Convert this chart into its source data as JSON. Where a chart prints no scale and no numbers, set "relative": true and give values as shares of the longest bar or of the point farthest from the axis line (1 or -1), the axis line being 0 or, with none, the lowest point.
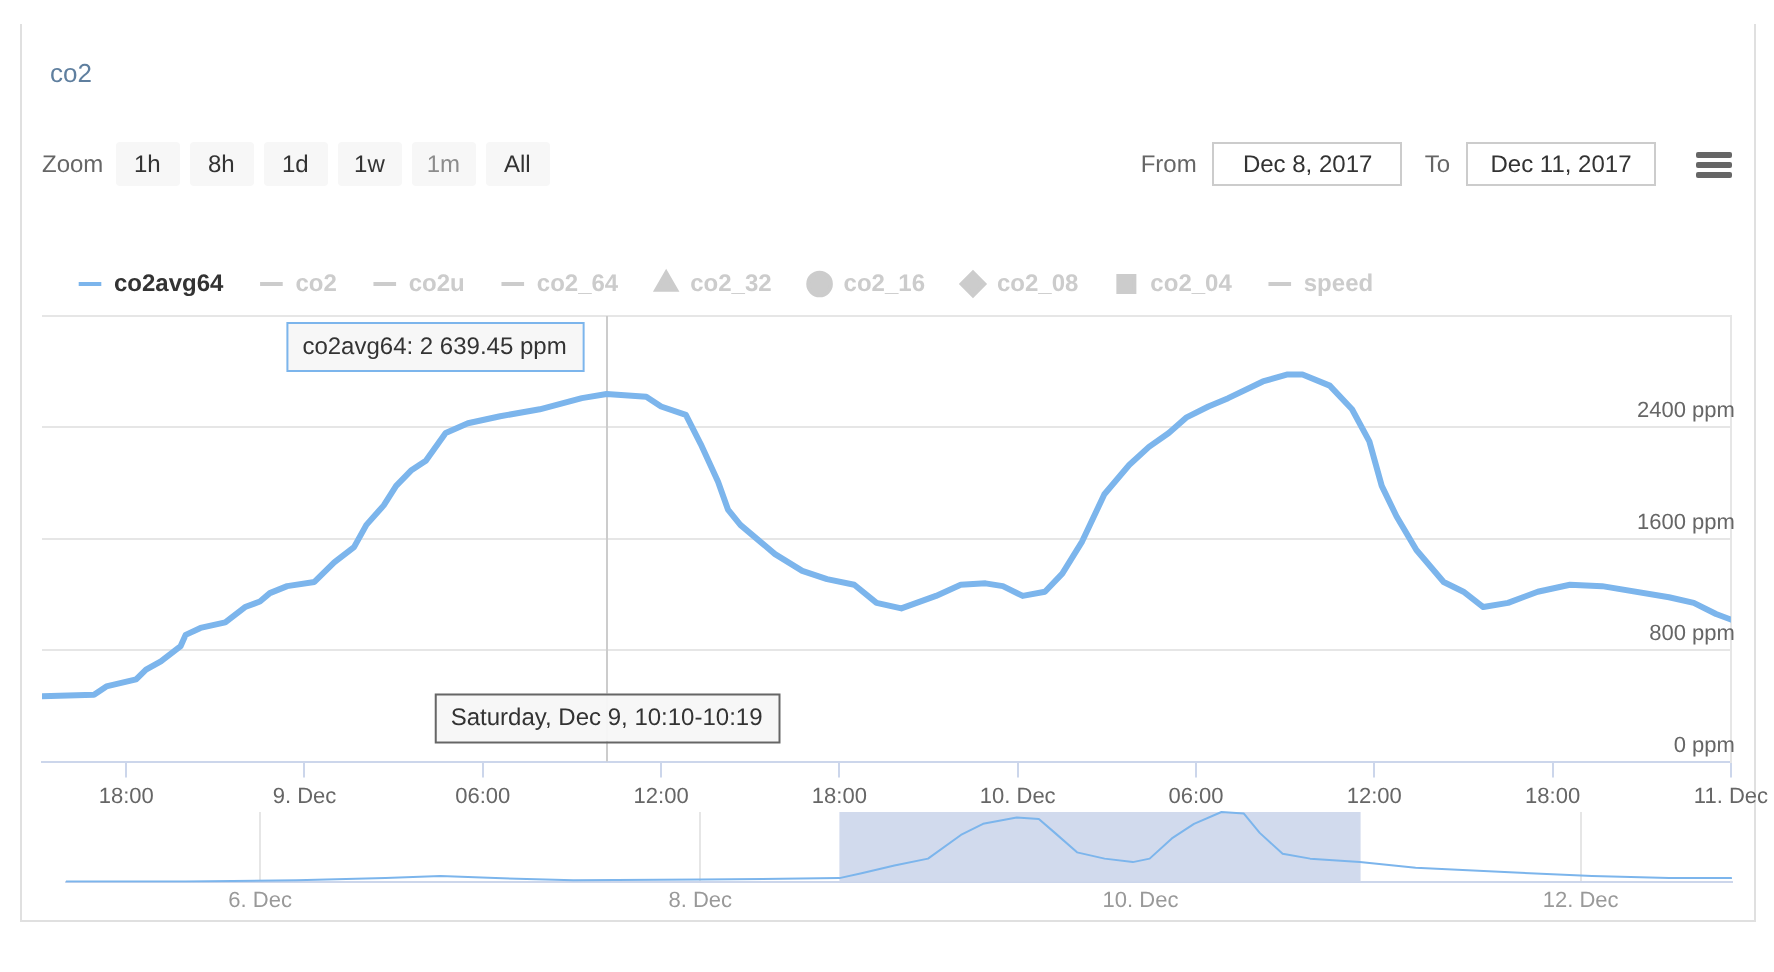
{
  "chart_data": [
    {
      "type": "line",
      "title": "co2",
      "xlim": [
        "2017-12-08T15:10",
        "2017-12-11T00:00"
      ],
      "xticks": [
        {
          "value": "2017-12-08T18:00",
          "label": "18:00"
        },
        {
          "value": "2017-12-09T00:00",
          "label": "9. Dec"
        },
        {
          "value": "2017-12-09T06:00",
          "label": "06:00"
        },
        {
          "value": "2017-12-09T12:00",
          "label": "12:00"
        },
        {
          "value": "2017-12-09T18:00",
          "label": "18:00"
        },
        {
          "value": "2017-12-10T00:00",
          "label": "10. Dec"
        },
        {
          "value": "2017-12-10T06:00",
          "label": "06:00"
        },
        {
          "value": "2017-12-10T12:00",
          "label": "12:00"
        },
        {
          "value": "2017-12-10T18:00",
          "label": "18:00"
        },
        {
          "value": "2017-12-11T00:00",
          "label": "11. Dec"
        }
      ],
      "ylim": [
        0,
        3200
      ],
      "yticks": [
        {
          "value": 0,
          "label": "0 ppm"
        },
        {
          "value": 800,
          "label": "800 ppm"
        },
        {
          "value": 1600,
          "label": "1600 ppm"
        },
        {
          "value": 2400,
          "label": "2400 ppm"
        },
        {
          "value": 3200,
          "label": null
        }
      ],
      "grid": "y",
      "legend": "top left",
      "series": [
        {
          "name": "co2avg64",
          "color": "#7cb5ec",
          "x": [
            "2017-12-08T15:10",
            "2017-12-08T16:55",
            "2017-12-08T17:20",
            "2017-12-08T18:20",
            "2017-12-08T18:40",
            "2017-12-08T19:10",
            "2017-12-08T19:50",
            "2017-12-08T20:00",
            "2017-12-08T20:30",
            "2017-12-08T21:20",
            "2017-12-08T22:00",
            "2017-12-08T22:30",
            "2017-12-08T22:50",
            "2017-12-08T23:25",
            "2017-12-09T00:20",
            "2017-12-09T01:00",
            "2017-12-09T01:40",
            "2017-12-09T02:05",
            "2017-12-09T02:40",
            "2017-12-09T03:05",
            "2017-12-09T03:35",
            "2017-12-09T04:05",
            "2017-12-09T04:45",
            "2017-12-09T05:30",
            "2017-12-09T06:35",
            "2017-12-09T07:55",
            "2017-12-09T09:20",
            "2017-12-09T10:10",
            "2017-12-09T11:30",
            "2017-12-09T12:00",
            "2017-12-09T12:50",
            "2017-12-09T13:20",
            "2017-12-09T13:55",
            "2017-12-09T14:15",
            "2017-12-09T14:40",
            "2017-12-09T15:20",
            "2017-12-09T15:50",
            "2017-12-09T16:45",
            "2017-12-09T17:35",
            "2017-12-09T18:30",
            "2017-12-09T19:15",
            "2017-12-09T20:05",
            "2017-12-09T21:15",
            "2017-12-09T22:05",
            "2017-12-09T22:55",
            "2017-12-09T23:30",
            "2017-12-10T00:10",
            "2017-12-10T00:55",
            "2017-12-10T01:30",
            "2017-12-10T02:10",
            "2017-12-10T02:55",
            "2017-12-10T03:45",
            "2017-12-10T04:25",
            "2017-12-10T05:05",
            "2017-12-10T05:40",
            "2017-12-10T06:25",
            "2017-12-10T07:05",
            "2017-12-10T08:15",
            "2017-12-10T09:05",
            "2017-12-10T09:35",
            "2017-12-10T10:30",
            "2017-12-10T11:15",
            "2017-12-10T11:50",
            "2017-12-10T12:15",
            "2017-12-10T12:45",
            "2017-12-10T13:25",
            "2017-12-10T14:20",
            "2017-12-10T15:00",
            "2017-12-10T15:40",
            "2017-12-10T16:30",
            "2017-12-10T17:30",
            "2017-12-10T18:35",
            "2017-12-10T19:40",
            "2017-12-10T21:55",
            "2017-12-10T22:45",
            "2017-12-10T23:30",
            "2017-12-11T00:00"
          ],
          "values": [
            470,
            480,
            540,
            590,
            660,
            720,
            830,
            910,
            960,
            1000,
            1110,
            1150,
            1210,
            1260,
            1290,
            1430,
            1540,
            1700,
            1840,
            1980,
            2090,
            2160,
            2360,
            2430,
            2480,
            2530,
            2610,
            2639.45,
            2620,
            2550,
            2490,
            2280,
            2010,
            1810,
            1700,
            1580,
            1490,
            1370,
            1310,
            1270,
            1140,
            1100,
            1190,
            1270,
            1280,
            1260,
            1190,
            1220,
            1350,
            1580,
            1920,
            2130,
            2260,
            2360,
            2470,
            2550,
            2610,
            2730,
            2780,
            2780,
            2700,
            2530,
            2300,
            1980,
            1760,
            1520,
            1290,
            1220,
            1110,
            1140,
            1220,
            1270,
            1260,
            1180,
            1140,
            1060,
            1020
          ]
        },
        {
          "name": "co2",
          "color": "#cccccc"
        },
        {
          "name": "co2u",
          "color": "#cccccc"
        },
        {
          "name": "co2_64",
          "color": "#cccccc"
        },
        {
          "name": "co2_32",
          "color": "#cccccc",
          "marker": "triangle"
        },
        {
          "name": "co2_16",
          "color": "#cccccc",
          "marker": "circle"
        },
        {
          "name": "co2_08",
          "color": "#cccccc",
          "marker": "diamond"
        },
        {
          "name": "co2_04",
          "color": "#cccccc",
          "marker": "square"
        },
        {
          "name": "speed",
          "color": "#cccccc"
        }
      ],
      "ref_lines": [
        {
          "axis": "x",
          "value": "2017-12-09T10:10",
          "color": "#cccccc"
        }
      ],
      "annotations": [
        {
          "text": "co2avg64: 2 639.45 ppm",
          "x": "2017-12-09T10:10",
          "y": 2639.45
        },
        "Saturday, Dec 9, 10:10-10:19"
      ]
    },
    {
      "type": "line",
      "relative": true,
      "grid": "x",
      "tick_labels": "x",
      "xlim": [
        "2017-12-05T02:50",
        "2017-12-12T16:30"
      ],
      "xticks": [
        {
          "value": "2017-12-06",
          "label": "6. Dec"
        },
        {
          "value": "2017-12-08",
          "label": "8. Dec"
        },
        {
          "value": "2017-12-10",
          "label": "10. Dec"
        },
        {
          "value": "2017-12-12",
          "label": "12. Dec"
        }
      ],
      "bands": [
        {
          "axis": "x",
          "from": "2017-12-08T15:10",
          "to": "2017-12-11T00:00",
          "color": "#d1daed"
        }
      ],
      "series": [
        {
          "color": "#7cb5ec",
          "x": [
            "2017-12-05T02:50",
            "2017-12-05T15:55",
            "2017-12-06T04:00",
            "2017-12-06T13:40",
            "2017-12-06T19:40",
            "2017-12-07T01:40",
            "2017-12-07T10:10",
            "2017-12-08T00:05",
            "2017-12-08T15:10",
            "2017-12-08T17:35",
            "2017-12-08T21:10",
            "2017-12-09T00:50",
            "2017-12-09T04:25",
            "2017-12-09T06:50",
            "2017-12-09T10:30",
            "2017-12-09T12:55",
            "2017-12-09T14:40",
            "2017-12-09T17:05",
            "2017-12-09T20:05",
            "2017-12-09T23:10",
            "2017-12-10T01:00",
            "2017-12-10T03:25",
            "2017-12-10T05:50",
            "2017-12-10T08:50",
            "2017-12-10T11:15",
            "2017-12-10T13:00",
            "2017-12-10T15:30",
            "2017-12-10T18:30",
            "2017-12-10T23:55",
            "2017-12-11T06:00",
            "2017-12-11T16:50",
            "2017-12-12T01:15",
            "2017-12-12T09:40",
            "2017-12-12T16:25"
          ],
          "values": [
            0,
            0,
            0.02,
            0.05,
            0.08,
            0.05,
            0.02,
            0.03,
            0.05,
            0.12,
            0.23,
            0.33,
            0.67,
            0.83,
            0.92,
            0.9,
            0.7,
            0.42,
            0.33,
            0.28,
            0.33,
            0.62,
            0.83,
            1,
            0.98,
            0.7,
            0.4,
            0.33,
            0.28,
            0.2,
            0.13,
            0.08,
            0.05,
            0.05
          ]
        }
      ]
    },
    {
      "type": "other",
      "annotations": [
        "Zoom",
        "1h",
        "8h",
        "1d",
        "1w",
        "1m",
        "All",
        "From",
        "Dec 8, 2017",
        "To",
        "Dec 11, 2017"
      ]
    }
  ]
}
